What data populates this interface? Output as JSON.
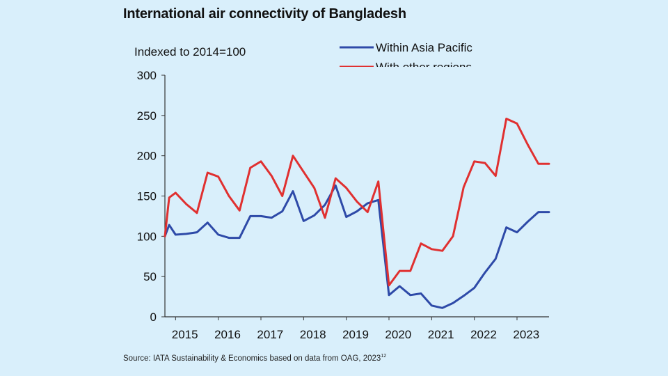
{
  "title": "International air connectivity of Bangladesh",
  "source_text": "Source: IATA Sustainability & Economics based on data from OAG, 2023",
  "source_sup": "12",
  "chart_data": {
    "type": "line",
    "title": "International air connectivity of Bangladesh",
    "ylabel": "Indexed to 2014=100",
    "xlabel": "",
    "ylim": [
      0,
      300
    ],
    "yticks": [
      0,
      50,
      100,
      150,
      200,
      250,
      300
    ],
    "xlim": [
      2014.75,
      2023.75
    ],
    "x_tick_labels": [
      "2015",
      "2016",
      "2017",
      "2018",
      "2019",
      "2020",
      "2021",
      "2022",
      "2023"
    ],
    "x_tick_positions": [
      2015.25,
      2016.25,
      2017.25,
      2018.25,
      2019.25,
      2020.25,
      2021.25,
      2022.25,
      2023.25
    ],
    "grid": false,
    "legend_position": "top-right",
    "x": [
      2014.75,
      2014.85,
      2015.0,
      2015.25,
      2015.5,
      2015.75,
      2016.0,
      2016.25,
      2016.5,
      2016.75,
      2017.0,
      2017.25,
      2017.5,
      2017.75,
      2018.0,
      2018.25,
      2018.5,
      2018.75,
      2019.0,
      2019.25,
      2019.5,
      2019.75,
      2020.0,
      2020.25,
      2020.5,
      2020.75,
      2021.0,
      2021.25,
      2021.5,
      2021.75,
      2022.0,
      2022.25,
      2022.5,
      2022.75,
      2023.0,
      2023.25,
      2023.5,
      2023.75
    ],
    "series": [
      {
        "name": "Within Asia Pacific",
        "color": "#2e4aa8",
        "values": [
          100,
          114,
          102,
          103,
          105,
          117,
          102,
          98,
          98,
          125,
          125,
          123,
          131,
          156,
          119,
          126,
          139,
          163,
          124,
          131,
          141,
          145,
          27,
          38,
          27,
          29,
          14,
          11,
          17,
          26,
          36,
          55,
          72,
          111,
          105,
          118,
          130,
          130
        ]
      },
      {
        "name": "With other regions",
        "color": "#e03030",
        "values": [
          100,
          148,
          154,
          140,
          129,
          179,
          174,
          150,
          132,
          185,
          193,
          175,
          150,
          200,
          180,
          160,
          123,
          172,
          160,
          143,
          130,
          168,
          39,
          57,
          57,
          91,
          84,
          82,
          100,
          161,
          193,
          191,
          175,
          246,
          240,
          214,
          190,
          190
        ]
      }
    ]
  }
}
